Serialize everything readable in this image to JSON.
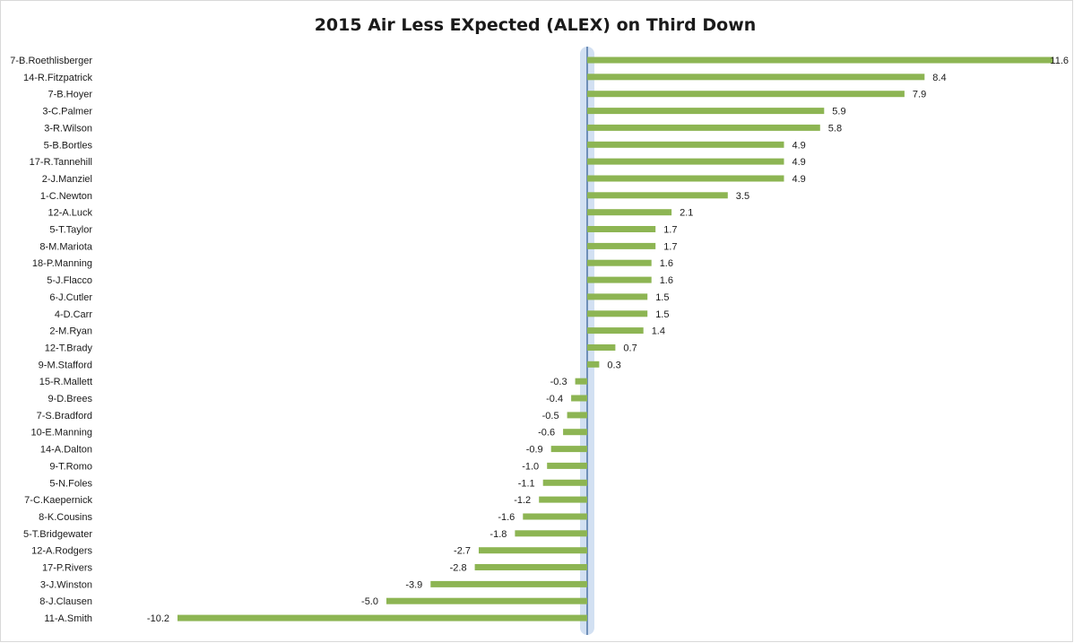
{
  "chart_data": {
    "type": "bar",
    "orientation": "horizontal",
    "title": "2015 Air Less EXpected (ALEX) on Third Down",
    "xlabel": "",
    "ylabel": "",
    "xlim": [
      -10.7,
      11.6
    ],
    "grid": false,
    "legend": "none",
    "colors": {
      "bar": "#8db553",
      "axis": "#6f8fb8",
      "axis_glow": "#bfd3ec",
      "text": "#1a1a1a"
    },
    "categories": [
      "7-B.Roethlisberger",
      "14-R.Fitzpatrick",
      "7-B.Hoyer",
      "3-C.Palmer",
      "3-R.Wilson",
      "5-B.Bortles",
      "17-R.Tannehill",
      "2-J.Manziel",
      "1-C.Newton",
      "12-A.Luck",
      "5-T.Taylor",
      "8-M.Mariota",
      "18-P.Manning",
      "5-J.Flacco",
      "6-J.Cutler",
      "4-D.Carr",
      "2-M.Ryan",
      "12-T.Brady",
      "9-M.Stafford",
      "15-R.Mallett",
      "9-D.Brees",
      "7-S.Bradford",
      "10-E.Manning",
      "14-A.Dalton",
      "9-T.Romo",
      "5-N.Foles",
      "7-C.Kaepernick",
      "8-K.Cousins",
      "5-T.Bridgewater",
      "12-A.Rodgers",
      "17-P.Rivers",
      "3-J.Winston",
      "8-J.Clausen",
      "11-A.Smith"
    ],
    "values": [
      11.6,
      8.4,
      7.9,
      5.9,
      5.8,
      4.9,
      4.9,
      4.9,
      3.5,
      2.1,
      1.7,
      1.7,
      1.6,
      1.6,
      1.5,
      1.5,
      1.4,
      0.7,
      0.3,
      -0.3,
      -0.4,
      -0.5,
      -0.6,
      -0.9,
      -1.0,
      -1.1,
      -1.2,
      -1.6,
      -1.8,
      -2.7,
      -2.8,
      -3.9,
      -5.0,
      -10.2
    ],
    "value_labels": [
      "11.6",
      "8.4",
      "7.9",
      "5.9",
      "5.8",
      "4.9",
      "4.9",
      "4.9",
      "3.5",
      "2.1",
      "1.7",
      "1.7",
      "1.6",
      "1.6",
      "1.5",
      "1.5",
      "1.4",
      "0.7",
      "0.3",
      "-0.3",
      "-0.4",
      "-0.5",
      "-0.6",
      "-0.9",
      "-1.0",
      "-1.1",
      "-1.2",
      "-1.6",
      "-1.8",
      "-2.7",
      "-2.8",
      "-3.9",
      "-5.0",
      "-10.2"
    ]
  }
}
